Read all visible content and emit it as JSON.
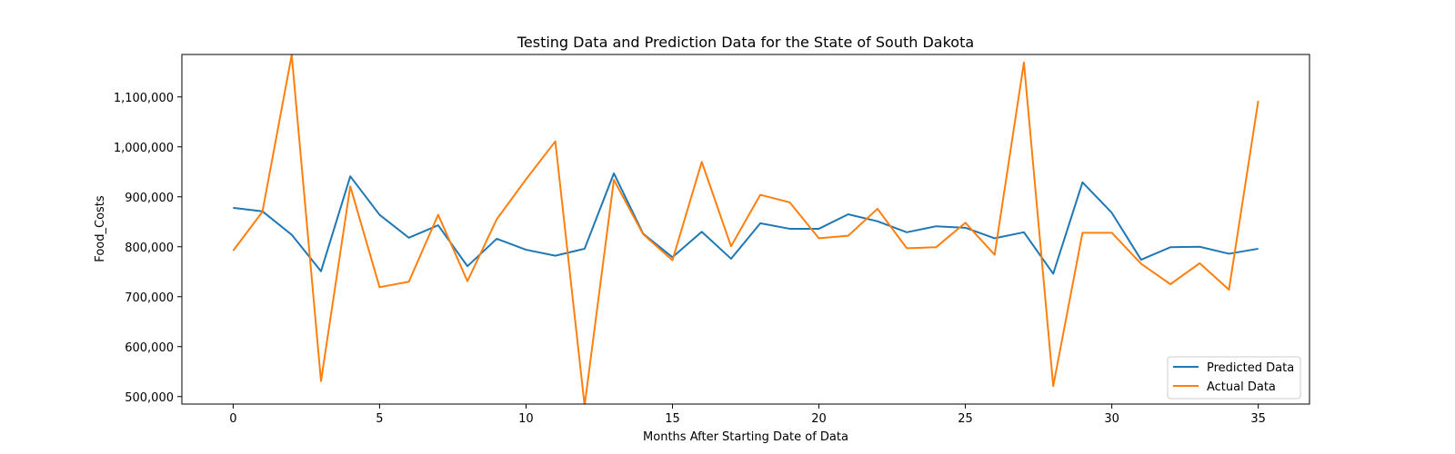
{
  "chart_data": {
    "type": "line",
    "title": "Testing Data and Prediction Data for the State of South Dakota",
    "xlabel": "Months After Starting Date of Data",
    "ylabel": "Food_Costs",
    "xlim": [
      -1.75,
      36.75
    ],
    "ylim": [
      485000,
      1185000
    ],
    "xticks": [
      0,
      5,
      10,
      15,
      20,
      25,
      30,
      35
    ],
    "xtick_labels": [
      "0",
      "5",
      "10",
      "15",
      "20",
      "25",
      "30",
      "35"
    ],
    "yticks": [
      500000,
      600000,
      700000,
      800000,
      900000,
      1000000,
      1100000
    ],
    "ytick_labels": [
      "500,000",
      "600,000",
      "700,000",
      "800,000",
      "900,000",
      "1,000,000",
      "1,100,000"
    ],
    "grid": false,
    "legend_position": "lower-right",
    "x": [
      0,
      1,
      2,
      3,
      4,
      5,
      6,
      7,
      8,
      9,
      10,
      11,
      12,
      13,
      14,
      15,
      16,
      17,
      18,
      19,
      20,
      21,
      22,
      23,
      24,
      25,
      26,
      27,
      28,
      29,
      30,
      31,
      32,
      33,
      34,
      35
    ],
    "series": [
      {
        "name": "Predicted Data",
        "color": "#1f77b4",
        "values": [
          878000,
          871000,
          824000,
          751000,
          941000,
          864000,
          818000,
          843000,
          761000,
          816000,
          794000,
          782000,
          796000,
          947000,
          826000,
          779000,
          830000,
          776000,
          847000,
          836000,
          836000,
          865000,
          851000,
          829000,
          841000,
          838000,
          817000,
          829000,
          746000,
          929000,
          868000,
          774000,
          799000,
          800000,
          786000,
          796000
        ]
      },
      {
        "name": "Actual Data",
        "color": "#ff7f0e",
        "values": [
          792000,
          870000,
          1184000,
          531000,
          921000,
          719000,
          730000,
          864000,
          731000,
          855000,
          935000,
          1011000,
          482000,
          934000,
          825000,
          773000,
          970000,
          801000,
          904000,
          889000,
          817000,
          822000,
          876000,
          797000,
          799000,
          848000,
          784000,
          1169000,
          521000,
          828000,
          828000,
          766000,
          725000,
          767000,
          714000,
          1092000
        ]
      }
    ]
  }
}
